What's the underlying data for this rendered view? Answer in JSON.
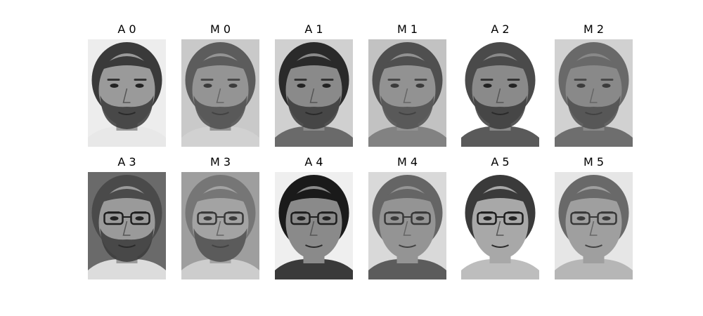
{
  "figure": {
    "background": "#ffffff",
    "panels": [
      {
        "title": "A 0",
        "kind": "A",
        "face": {
          "hair": "#3a3a3a",
          "skin": "#9a9a9a",
          "bg": "#ededed",
          "beard": true,
          "glasses": false,
          "shirt": "#e8e8e8"
        }
      },
      {
        "title": "M 0",
        "kind": "M",
        "face": {
          "hair": "#4a4a4a",
          "skin": "#8e8e8e",
          "bg": "#cfcfcf",
          "beard": true,
          "glasses": false,
          "shirt": "#d8d8d8"
        }
      },
      {
        "title": "A 1",
        "kind": "A",
        "face": {
          "hair": "#2a2a2a",
          "skin": "#8a8a8a",
          "bg": "#d0d0d0",
          "beard": true,
          "glasses": false,
          "shirt": "#6a6a6a"
        }
      },
      {
        "title": "M 1",
        "kind": "M",
        "face": {
          "hair": "#3a3a3a",
          "skin": "#8c8c8c",
          "bg": "#c6c6c6",
          "beard": true,
          "glasses": false,
          "shirt": "#787878"
        }
      },
      {
        "title": "A 2",
        "kind": "A",
        "face": {
          "hair": "#4a4a4a",
          "skin": "#8a8a8a",
          "bg": "#ffffff",
          "beard": true,
          "glasses": false,
          "shirt": "#5a5a5a"
        }
      },
      {
        "title": "M 2",
        "kind": "M",
        "face": {
          "hair": "#5a5a5a",
          "skin": "#808080",
          "bg": "#d8d8d8",
          "beard": true,
          "glasses": false,
          "shirt": "#606060"
        }
      },
      {
        "title": "A 3",
        "kind": "A",
        "face": {
          "hair": "#4a4a4a",
          "skin": "#9a9a9a",
          "bg": "#6a6a6a",
          "beard": true,
          "glasses": true,
          "shirt": "#dcdcdc"
        }
      },
      {
        "title": "M 3",
        "kind": "M",
        "face": {
          "hair": "#6a6a6a",
          "skin": "#a0a0a0",
          "bg": "#9a9a9a",
          "beard": true,
          "glasses": true,
          "shirt": "#d4d4d4"
        }
      },
      {
        "title": "A 4",
        "kind": "A",
        "face": {
          "hair": "#1a1a1a",
          "skin": "#8a8a8a",
          "bg": "#efefef",
          "beard": false,
          "glasses": true,
          "shirt": "#3a3a3a"
        }
      },
      {
        "title": "M 4",
        "kind": "M",
        "face": {
          "hair": "#555555",
          "skin": "#8e8e8e",
          "bg": "#e2e2e2",
          "beard": false,
          "glasses": true,
          "shirt": "#4a4a4a"
        }
      },
      {
        "title": "A 5",
        "kind": "A",
        "face": {
          "hair": "#3a3a3a",
          "skin": "#a8a8a8",
          "bg": "#ffffff",
          "beard": false,
          "glasses": true,
          "shirt": "#bdbdbd"
        }
      },
      {
        "title": "M 5",
        "kind": "M",
        "face": {
          "hair": "#5a5a5a",
          "skin": "#9c9c9c",
          "bg": "#f2f2f2",
          "beard": false,
          "glasses": true,
          "shirt": "#b8b8b8"
        }
      }
    ]
  }
}
